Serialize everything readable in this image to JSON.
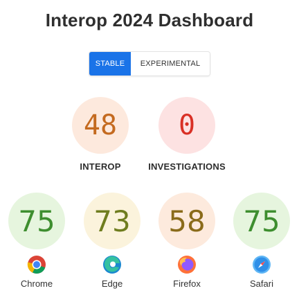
{
  "title": "Interop 2024 Dashboard",
  "toggle": {
    "stable_label": "STABLE",
    "experimental_label": "EXPERIMENTAL",
    "selected": "STABLE",
    "active_color": "#1a73e8"
  },
  "summary": {
    "interop": {
      "score": "48",
      "label": "INTEROP",
      "bg_color": "#fde9dd",
      "text_color": "#c46a1f"
    },
    "investigations": {
      "score": "0",
      "label": "INVESTIGATIONS",
      "bg_color": "#fde2e2",
      "text_color": "#d93025"
    }
  },
  "browsers": [
    {
      "name": "Chrome",
      "score": "75",
      "icon": "chrome-icon",
      "bg_color": "#e6f5de",
      "text_color": "#3e8e2f"
    },
    {
      "name": "Edge",
      "score": "73",
      "icon": "edge-icon",
      "bg_color": "#fbf3dc",
      "text_color": "#6f7d1f"
    },
    {
      "name": "Firefox",
      "score": "58",
      "icon": "firefox-icon",
      "bg_color": "#fdeadd",
      "text_color": "#8a6b1a"
    },
    {
      "name": "Safari",
      "score": "75",
      "icon": "safari-icon",
      "bg_color": "#e6f5de",
      "text_color": "#3e8e2f"
    }
  ]
}
